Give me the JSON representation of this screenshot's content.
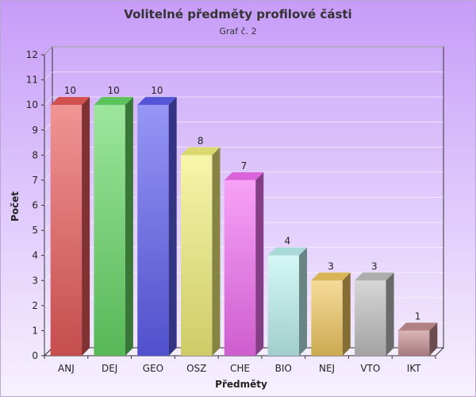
{
  "chart_data": {
    "type": "bar",
    "title": "Volitelné předměty profilové části",
    "subtitle": "Graf č. 2",
    "xlabel": "Předměty",
    "ylabel": "Počet",
    "categories": [
      "ANJ",
      "DEJ",
      "GEO",
      "OSZ",
      "CHE",
      "BIO",
      "NEJ",
      "VTO",
      "IKT"
    ],
    "values": [
      10,
      10,
      10,
      8,
      7,
      4,
      3,
      3,
      1
    ],
    "colors": [
      "#e85a5a",
      "#66d866",
      "#5e5ef0",
      "#f2f07a",
      "#f26ef2",
      "#bdf2f0",
      "#f0c860",
      "#c0c0c0",
      "#c48e92"
    ],
    "ylim": [
      0,
      12
    ],
    "yticks": [
      0,
      1,
      2,
      3,
      4,
      5,
      6,
      7,
      8,
      9,
      10,
      11,
      12
    ],
    "grid": true,
    "legend": "none",
    "style": "3d-bar"
  }
}
